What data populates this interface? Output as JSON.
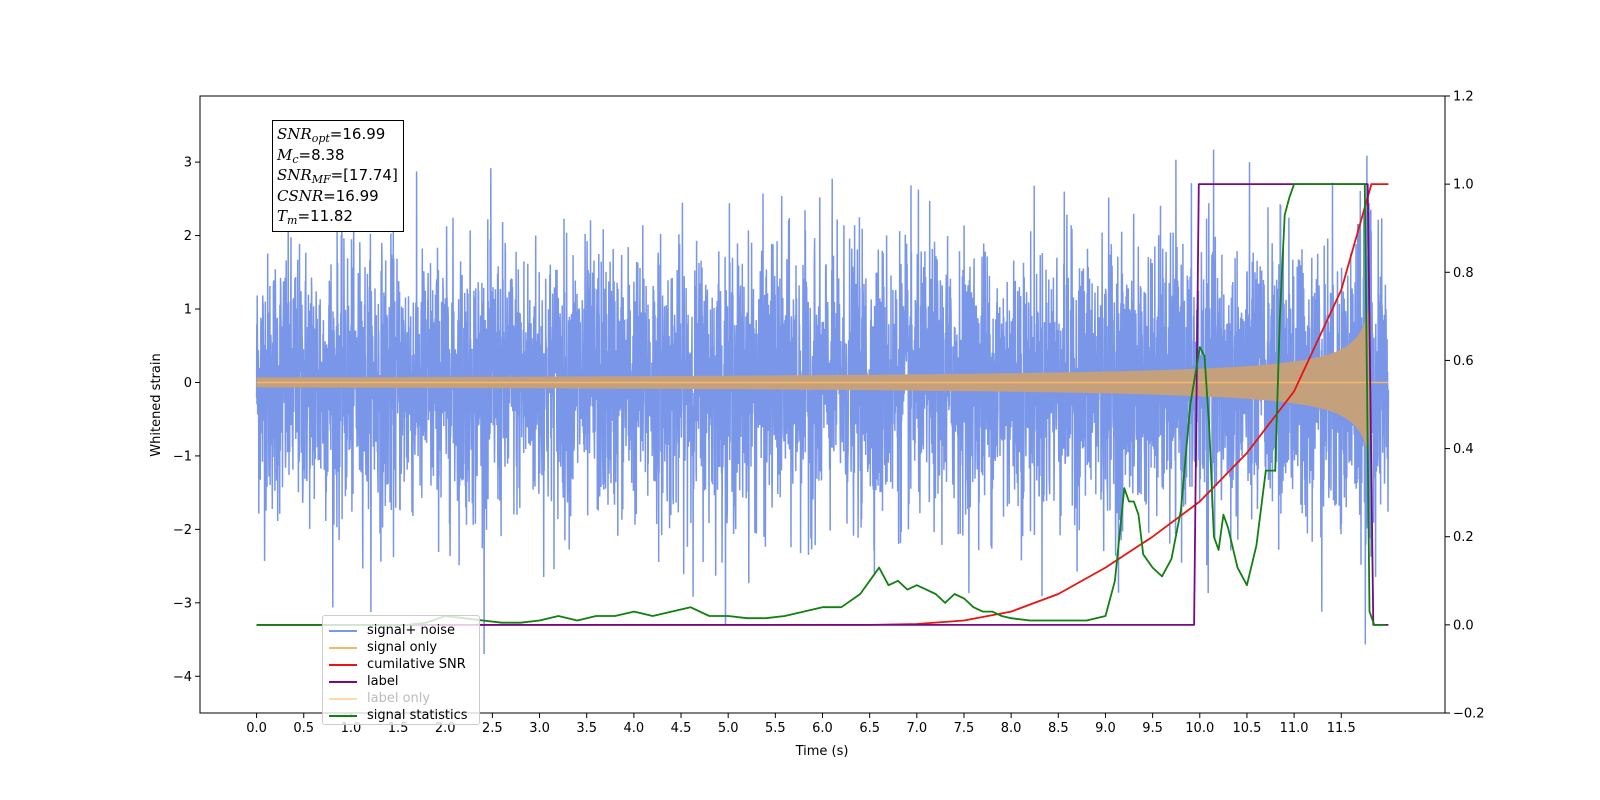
{
  "chart_data": {
    "type": "line",
    "xlabel": "Time (s)",
    "ylabel": "Whitened strain",
    "xlim": [
      -0.6,
      12.6
    ],
    "ylim_left": [
      -4.5,
      3.9
    ],
    "ylim_right": [
      -0.2,
      1.2
    ],
    "xticks": [
      "0.0",
      "0.5",
      "1.0",
      "1.5",
      "2.0",
      "2.5",
      "3.0",
      "3.5",
      "4.0",
      "4.5",
      "5.0",
      "5.5",
      "6.0",
      "6.5",
      "7.0",
      "7.5",
      "8.0",
      "8.5",
      "9.0",
      "9.5",
      "10.0",
      "10.5",
      "11.0",
      "11.5"
    ],
    "yticks_left": [
      "−4",
      "−3",
      "−2",
      "−1",
      "0",
      "1",
      "2",
      "3"
    ],
    "yticks_right": [
      "−0.2",
      "0.0",
      "0.2",
      "0.4",
      "0.6",
      "0.8",
      "1.0",
      "1.2"
    ],
    "grid": false,
    "legend_position": "lower-left",
    "annotation": [
      {
        "sym": "SNR",
        "sub": "opt",
        "val": "=16.99"
      },
      {
        "sym": "M",
        "sub": "c",
        "val": "=8.38"
      },
      {
        "sym": "SNR",
        "sub": "MF",
        "val": "=[17.74]"
      },
      {
        "sym": "CSNR",
        "sub": "",
        "val": "=16.99"
      },
      {
        "sym": "T",
        "sub": "m",
        "val": "=11.82"
      }
    ],
    "series": [
      {
        "name": "signal+ noise",
        "color": "#7a96e8",
        "axis": "left",
        "noise_sigma": 0.9,
        "x_range": [
          0.0,
          12.0
        ]
      },
      {
        "name": "signal only",
        "color": "#f5b86a",
        "axis": "left",
        "merger_time": 11.82,
        "peak_amplitude": 1.25
      },
      {
        "name": "cumilative SNR",
        "color": "#e8140f",
        "axis": "right",
        "x": [
          0.0,
          6.5,
          7.0,
          7.5,
          8.0,
          8.5,
          9.0,
          9.5,
          10.0,
          10.5,
          11.0,
          11.5,
          11.82,
          12.0
        ],
        "y": [
          0.0,
          0.0,
          0.002,
          0.01,
          0.03,
          0.07,
          0.13,
          0.2,
          0.28,
          0.39,
          0.53,
          0.76,
          1.0,
          1.0
        ]
      },
      {
        "name": "label",
        "color": "#760a84",
        "axis": "right",
        "x": [
          0.0,
          9.94,
          9.99,
          11.78,
          11.84,
          12.0
        ],
        "y": [
          0.0,
          0.0,
          1.0,
          1.0,
          0.0,
          0.0
        ]
      },
      {
        "name": "label only",
        "color": "#f5b86a",
        "axis": "right",
        "hidden": true
      },
      {
        "name": "signal statistics",
        "color": "#118011",
        "axis": "right",
        "x": [
          0.0,
          1.6,
          1.8,
          2.0,
          2.2,
          2.4,
          2.6,
          2.8,
          3.0,
          3.2,
          3.4,
          3.6,
          3.8,
          4.0,
          4.2,
          4.4,
          4.6,
          4.8,
          5.0,
          5.2,
          5.4,
          5.6,
          5.8,
          6.0,
          6.2,
          6.4,
          6.5,
          6.6,
          6.7,
          6.8,
          6.9,
          7.0,
          7.1,
          7.2,
          7.3,
          7.4,
          7.5,
          7.6,
          7.7,
          7.8,
          7.9,
          8.0,
          8.2,
          8.4,
          8.6,
          8.8,
          9.0,
          9.1,
          9.2,
          9.25,
          9.3,
          9.35,
          9.4,
          9.5,
          9.6,
          9.7,
          9.8,
          9.9,
          10.0,
          10.05,
          10.1,
          10.15,
          10.2,
          10.25,
          10.3,
          10.4,
          10.5,
          10.6,
          10.7,
          10.8,
          10.85,
          10.9,
          10.95,
          11.0,
          11.1,
          11.2,
          11.3,
          11.4,
          11.5,
          11.6,
          11.75,
          11.8,
          11.85,
          11.9,
          11.97
        ],
        "y": [
          0.0,
          0.0,
          0.005,
          0.02,
          0.015,
          0.01,
          0.005,
          0.005,
          0.01,
          0.02,
          0.01,
          0.02,
          0.02,
          0.03,
          0.02,
          0.03,
          0.04,
          0.02,
          0.02,
          0.015,
          0.015,
          0.02,
          0.03,
          0.04,
          0.04,
          0.07,
          0.1,
          0.13,
          0.09,
          0.1,
          0.08,
          0.09,
          0.08,
          0.07,
          0.05,
          0.07,
          0.06,
          0.04,
          0.03,
          0.03,
          0.02,
          0.015,
          0.01,
          0.01,
          0.01,
          0.01,
          0.02,
          0.1,
          0.31,
          0.28,
          0.28,
          0.25,
          0.16,
          0.13,
          0.11,
          0.15,
          0.26,
          0.5,
          0.63,
          0.61,
          0.45,
          0.2,
          0.17,
          0.25,
          0.22,
          0.13,
          0.09,
          0.18,
          0.35,
          0.35,
          0.7,
          0.93,
          0.97,
          1.0,
          1.0,
          1.0,
          1.0,
          1.0,
          1.0,
          1.0,
          1.0,
          0.03,
          0.0,
          0.0,
          0.0
        ]
      }
    ]
  }
}
